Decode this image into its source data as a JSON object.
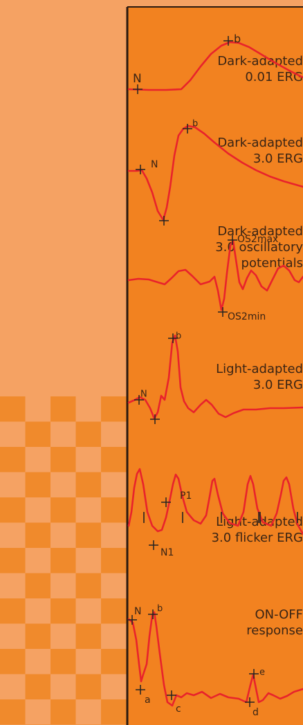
{
  "colors": {
    "left_panel": "#F5A263",
    "checker_dark": "#F08A2C",
    "plot_background": "#F28220",
    "trace": "#E8232B",
    "divider": "#2a1a10",
    "marker": "#222222"
  },
  "rows": [
    {
      "id": "da001",
      "label_lines": [
        "Dark-adapted",
        "0.01 ERG"
      ],
      "markers": [
        {
          "id": "N",
          "text": "N",
          "style": "cross"
        },
        {
          "id": "b",
          "text": "b",
          "style": "cross"
        }
      ]
    },
    {
      "id": "da30",
      "label_lines": [
        "Dark-adapted",
        "3.0 ERG"
      ],
      "markers": [
        {
          "id": "N",
          "text": "N",
          "style": "cross"
        },
        {
          "id": "a",
          "text": "",
          "style": "cross"
        },
        {
          "id": "b",
          "text": "b",
          "style": "cross"
        }
      ]
    },
    {
      "id": "op",
      "label_lines": [
        "Dark-adapted",
        "3.0 oscillatory",
        "potentials"
      ],
      "markers": [
        {
          "id": "OS2max",
          "text": "OS2max",
          "style": "cross"
        },
        {
          "id": "OS2min",
          "text": "OS2min",
          "style": "cross"
        }
      ]
    },
    {
      "id": "la30",
      "label_lines": [
        "Light-adapted",
        "3.0 ERG"
      ],
      "markers": [
        {
          "id": "N",
          "text": "N",
          "style": "cross"
        },
        {
          "id": "a",
          "text": "",
          "style": "cross"
        },
        {
          "id": "b",
          "text": "b",
          "style": "cross"
        }
      ]
    },
    {
      "id": "flicker",
      "label_lines": [
        "Light-adapted",
        "3.0 flicker ERG"
      ],
      "markers": [
        {
          "id": "P1",
          "text": "P1",
          "style": "cross"
        },
        {
          "id": "N1",
          "text": "N1",
          "style": "cross"
        },
        {
          "id": "t1",
          "text": "",
          "style": "tick"
        },
        {
          "id": "t2",
          "text": "",
          "style": "tick"
        },
        {
          "id": "t3",
          "text": "",
          "style": "tick"
        },
        {
          "id": "t4",
          "text": "",
          "style": "tick"
        },
        {
          "id": "t5",
          "text": "",
          "style": "tick"
        },
        {
          "id": "t6",
          "text": "",
          "style": "tick"
        }
      ]
    },
    {
      "id": "onoff",
      "label_lines": [
        "ON-OFF",
        "response"
      ],
      "markers": [
        {
          "id": "N",
          "text": "N",
          "style": "cross"
        },
        {
          "id": "b",
          "text": "b",
          "style": "cross"
        },
        {
          "id": "a",
          "text": "a",
          "style": "cross"
        },
        {
          "id": "c",
          "text": "c",
          "style": "cross"
        },
        {
          "id": "e",
          "text": "e",
          "style": "cross"
        },
        {
          "id": "d",
          "text": "d",
          "style": "cross"
        }
      ]
    }
  ]
}
